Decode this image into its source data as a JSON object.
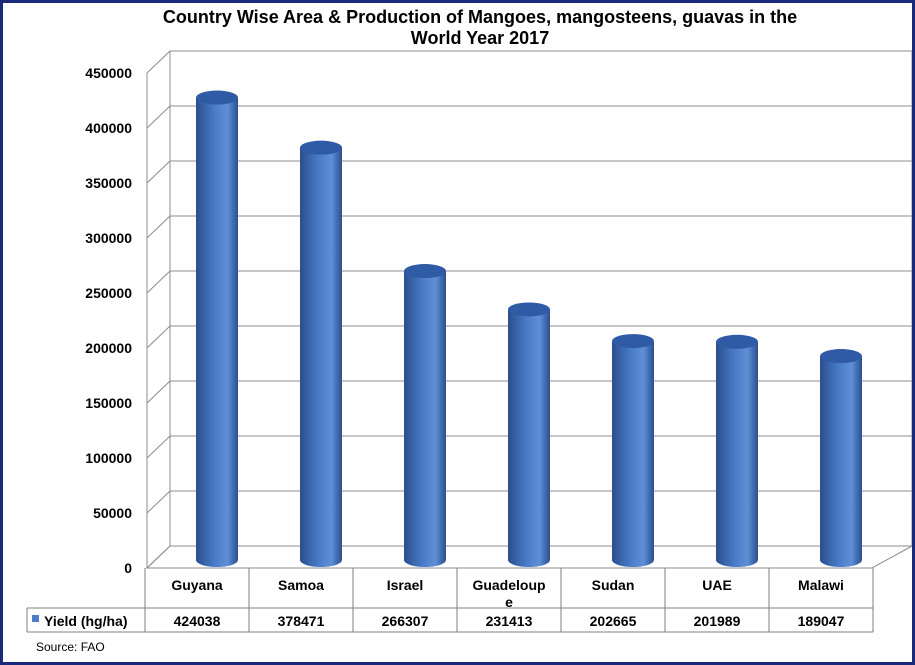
{
  "chart_data": {
    "type": "bar",
    "title": [
      "Country Wise Area & Production of Mangoes, mangosteens, guavas in the",
      "World Year 2017"
    ],
    "categories": [
      "Guyana",
      "Samoa",
      "Israel",
      "Guadeloupe",
      "Sudan",
      "UAE",
      "Malawi"
    ],
    "category_display": [
      [
        "Guyana"
      ],
      [
        "Samoa"
      ],
      [
        "Israel"
      ],
      [
        "Guadeloup",
        "e"
      ],
      [
        "Sudan"
      ],
      [
        "UAE"
      ],
      [
        "Malawi"
      ]
    ],
    "series": [
      {
        "name": "Yield (hg/ha)",
        "values": [
          424038,
          378471,
          266307,
          231413,
          202665,
          201989,
          189047
        ]
      }
    ],
    "data_table_values": [
      "424038",
      "378471",
      "266307",
      "231413",
      "202665",
      "201989",
      "189047"
    ],
    "ylim": [
      0,
      450000
    ],
    "ytick_labels": [
      "0",
      "50000",
      "100000",
      "150000",
      "200000",
      "250000",
      "300000",
      "350000",
      "400000",
      "450000"
    ],
    "grid": true,
    "shape": "3d-cylinder",
    "colors": {
      "bar": "#4a7cc8",
      "bar_dark": "#2a4f90",
      "bar_top": "#2f5aa5",
      "legend_marker": "#4a7cc8",
      "grid": "#8c8c8c",
      "border": "#1a2a7a"
    },
    "source": "Source: FAO"
  }
}
